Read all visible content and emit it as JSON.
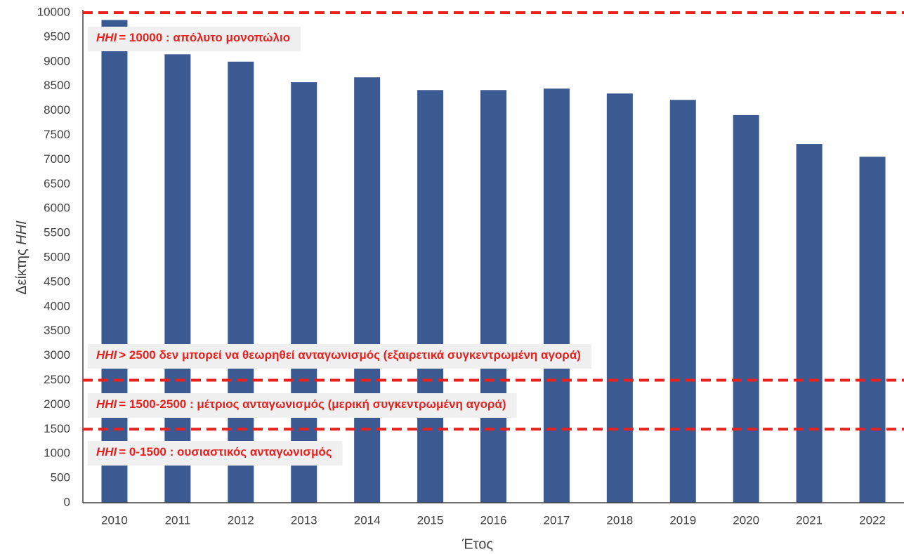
{
  "chart_data": {
    "type": "bar",
    "categories": [
      "2010",
      "2011",
      "2012",
      "2013",
      "2014",
      "2015",
      "2016",
      "2017",
      "2018",
      "2019",
      "2020",
      "2021",
      "2022"
    ],
    "values": [
      9850,
      9150,
      9000,
      8580,
      8680,
      8420,
      8420,
      8450,
      8350,
      8220,
      7910,
      7320,
      7060
    ],
    "color": "#3b5a92",
    "ylim": [
      0,
      10000
    ],
    "yticks": [
      0,
      500,
      1000,
      1500,
      2000,
      2500,
      3000,
      3500,
      4000,
      4500,
      5000,
      5500,
      6000,
      6500,
      7000,
      7500,
      8000,
      8500,
      9000,
      9500,
      10000
    ],
    "xlabel": "Έτος",
    "ylabel": [
      "Δείκτης",
      "HHI"
    ],
    "grid": false,
    "reference_lines": {
      "values": [
        10000,
        2500,
        1500
      ],
      "color": "#e8211d"
    },
    "annotations": [
      {
        "prefix": "HHI",
        "text": "= 10000 : απόλυτο μονοπώλιο"
      },
      {
        "prefix": "HHI",
        "text": "> 2500 δεν μπορεί να θεωρηθεί ανταγωνισμός (εξαιρετικά συγκεντρωμένη αγορά)"
      },
      {
        "prefix": "HHI",
        "text": "= 1500-2500 : μέτριος ανταγωνισμός (μερική συγκεντρωμένη αγορά)"
      },
      {
        "prefix": "HHI",
        "text": "= 0-1500 : ουσιαστικός ανταγωνισμός"
      }
    ]
  }
}
